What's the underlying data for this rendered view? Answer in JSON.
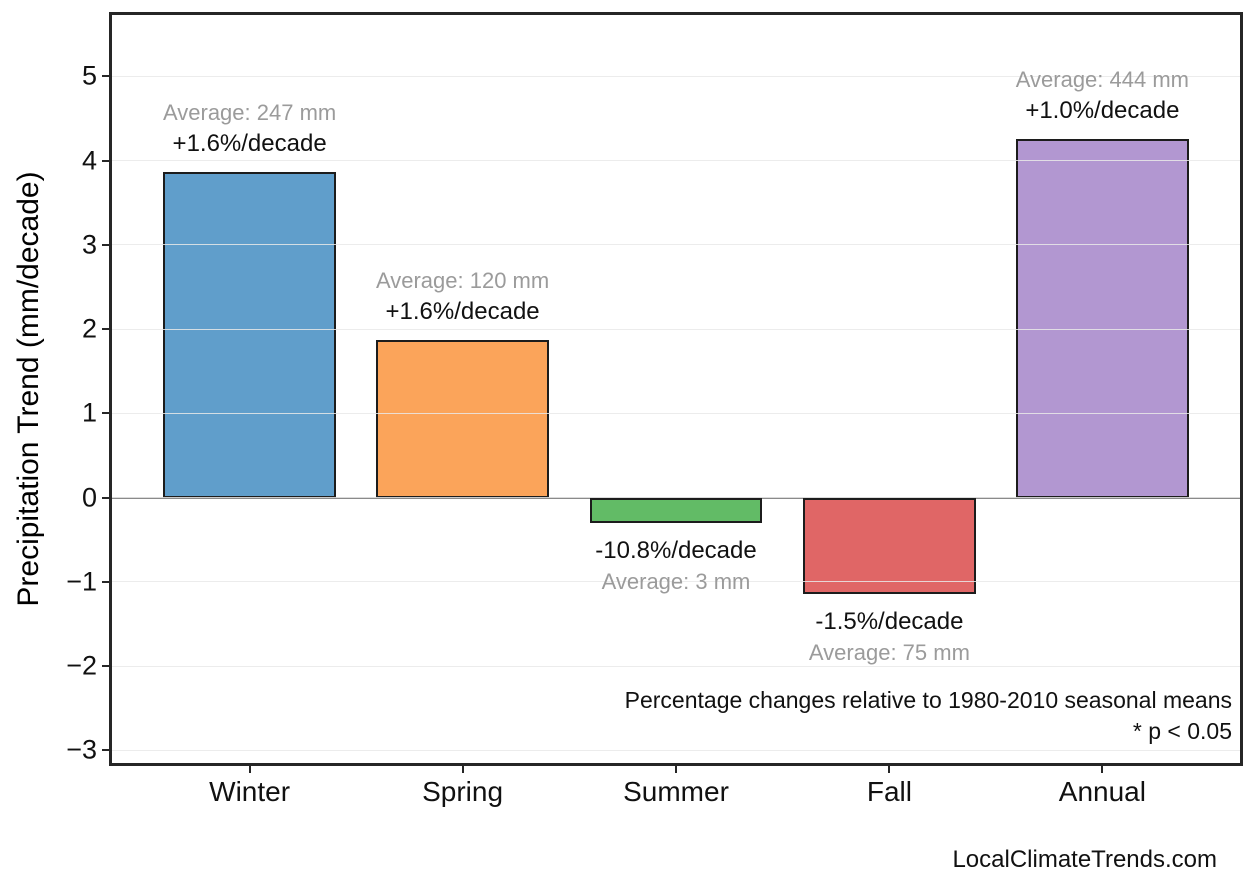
{
  "page": {
    "footer": "LocalClimateTrends.com",
    "background": "#ffffff"
  },
  "chart_data": {
    "type": "bar",
    "title": "",
    "xlabel": "",
    "ylabel": "Precipitation Trend (mm/decade)",
    "categories": [
      "Winter",
      "Spring",
      "Summer",
      "Fall",
      "Annual"
    ],
    "values": [
      3.87,
      1.87,
      -0.3,
      -1.14,
      4.26
    ],
    "bars": [
      {
        "category": "Winter",
        "value": 3.87,
        "fill": "rgba(68,141,194,0.85)",
        "average_label": "Average: 247 mm",
        "trend_label": "+1.6%/decade"
      },
      {
        "category": "Spring",
        "value": 1.87,
        "fill": "rgba(250,148,61,0.85)",
        "average_label": "Average: 120 mm",
        "trend_label": "+1.6%/decade"
      },
      {
        "category": "Summer",
        "value": -0.3,
        "fill": "rgba(70,175,75,0.85)",
        "average_label": "Average: 3 mm",
        "trend_label": "-10.8%/decade"
      },
      {
        "category": "Fall",
        "value": -1.14,
        "fill": "rgba(219,75,75,0.85)",
        "average_label": "Average: 75 mm",
        "trend_label": "-1.5%/decade"
      },
      {
        "category": "Annual",
        "value": 4.26,
        "fill": "rgba(164,133,201,0.85)",
        "average_label": "Average: 444 mm",
        "trend_label": "+1.0%/decade"
      }
    ],
    "bar_edge_color": "#1c1c1c",
    "ylim": [
      -3.15,
      5.73
    ],
    "yticks": [
      5,
      4,
      3,
      2,
      1,
      0,
      -1,
      -2,
      -3
    ],
    "ytick_labels": [
      "5",
      "4",
      "3",
      "2",
      "1",
      "0",
      "−1",
      "−2",
      "−3"
    ],
    "grid": true,
    "gridline_color": "#e9e9e9",
    "zero_line_color": "#8a8a8a",
    "legend": "none",
    "note_line1": "Percentage changes relative to 1980-2010 seasonal means",
    "note_line2": "* p < 0.05"
  }
}
